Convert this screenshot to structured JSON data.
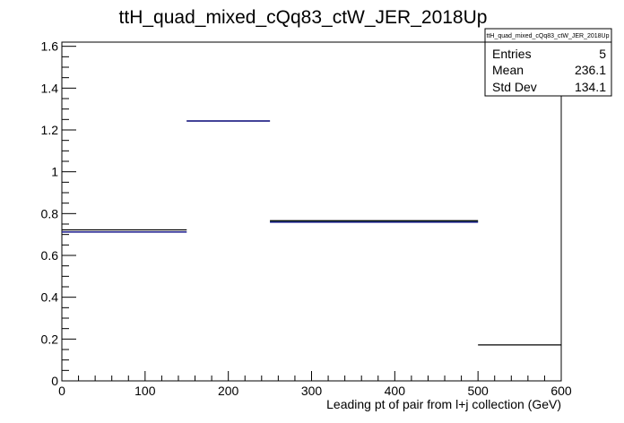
{
  "chart_data": {
    "type": "step",
    "title": "ttH_quad_mixed_cQq83_ctW_JER_2018Up",
    "xlabel": "Leading pt of pair from l+j collection (GeV)",
    "ylabel": "",
    "xlim": [
      0,
      600
    ],
    "ylim": [
      0,
      1.62
    ],
    "x_ticks": [
      "0",
      "100",
      "200",
      "300",
      "400",
      "500",
      "600"
    ],
    "y_ticks": [
      "0",
      "0.2",
      "0.4",
      "0.6",
      "0.8",
      "1",
      "1.2",
      "1.4",
      "1.6"
    ],
    "grid": false,
    "bins": [
      {
        "x0": 0,
        "x1": 150,
        "y_blue": 0.712,
        "y_black": 0.722
      },
      {
        "x0": 150,
        "x1": 250,
        "y_blue": 1.243,
        "y_black": 1.243
      },
      {
        "x0": 250,
        "x1": 500,
        "y_blue": 0.759,
        "y_black": 0.766,
        "y_green": 0.762
      },
      {
        "x0": 500,
        "x1": 600,
        "y_black": 0.172
      }
    ],
    "colors": {
      "blue": "#1a1a8c",
      "black": "#000000",
      "green": "#2ea043"
    },
    "stats": {
      "title": "ttH_quad_mixed_cQq83_ctW_JER_2018Up",
      "rows": [
        {
          "label": "Entries",
          "value": "5"
        },
        {
          "label": "Mean",
          "value": "236.1"
        },
        {
          "label": "Std Dev",
          "value": "134.1"
        }
      ]
    }
  }
}
